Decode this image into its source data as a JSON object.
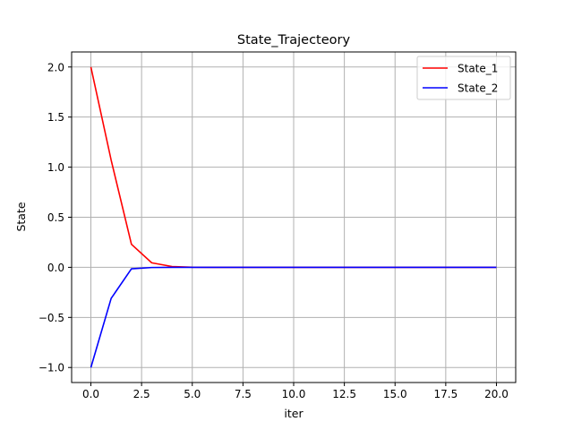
{
  "chart_data": {
    "type": "line",
    "title": "State_Trajecteory",
    "xlabel": "iter",
    "ylabel": "State",
    "xlim": [
      -0.95,
      20.95
    ],
    "ylim": [
      -1.15,
      2.15
    ],
    "xticks": [
      0.0,
      2.5,
      5.0,
      7.5,
      10.0,
      12.5,
      15.0,
      17.5,
      20.0
    ],
    "xtick_labels": [
      "0.0",
      "2.5",
      "5.0",
      "7.5",
      "10.0",
      "12.5",
      "15.0",
      "17.5",
      "20.0"
    ],
    "yticks": [
      -1.0,
      -0.5,
      0.0,
      0.5,
      1.0,
      1.5,
      2.0
    ],
    "ytick_labels": [
      "−1.0",
      "−0.5",
      "0.0",
      "0.5",
      "1.0",
      "1.5",
      "2.0"
    ],
    "grid": true,
    "legend_position": "top-right",
    "x": [
      0,
      1,
      2,
      3,
      4,
      5,
      6,
      7,
      8,
      9,
      10,
      11,
      12,
      13,
      14,
      15,
      16,
      17,
      18,
      19,
      20
    ],
    "series": [
      {
        "name": "State_1",
        "color": "#ff0000",
        "values": [
          2.0,
          1.07,
          0.23,
          0.045,
          0.008,
          0.001,
          0,
          0,
          0,
          0,
          0,
          0,
          0,
          0,
          0,
          0,
          0,
          0,
          0,
          0,
          0
        ]
      },
      {
        "name": "State_2",
        "color": "#0000ff",
        "values": [
          -1.0,
          -0.31,
          -0.015,
          -0.002,
          0,
          0,
          0,
          0,
          0,
          0,
          0,
          0,
          0,
          0,
          0,
          0,
          0,
          0,
          0,
          0,
          0
        ]
      }
    ]
  }
}
